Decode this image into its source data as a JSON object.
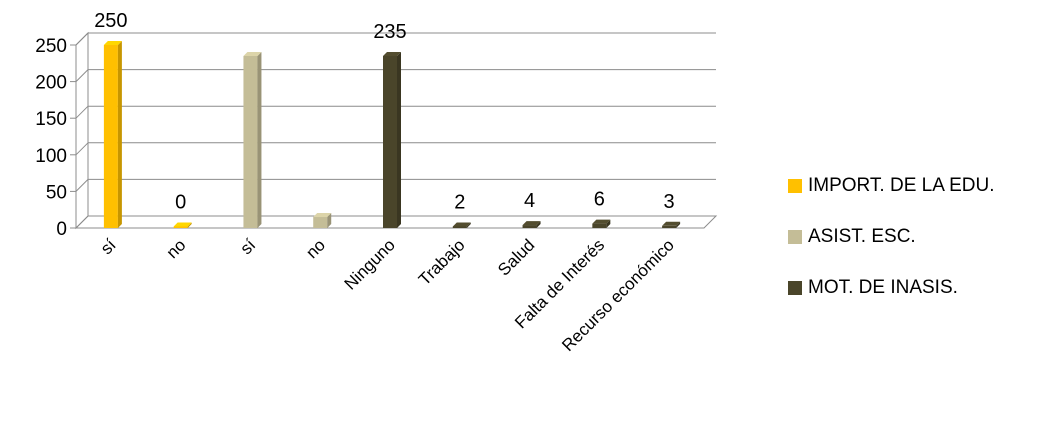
{
  "chart_data": {
    "type": "bar",
    "style": "3d-clustered-column",
    "categories": [
      "sí",
      "no",
      "sí",
      "no",
      "Ninguno",
      "Trabajo",
      "Salud",
      "Falta de Interés",
      "Recurso económico"
    ],
    "series": [
      {
        "name": "IMPORT. DE LA EDU.",
        "color": "#FFC000",
        "values": [
          250,
          0,
          null,
          null,
          null,
          null,
          null,
          null,
          null
        ]
      },
      {
        "name": "ASIST. ESC.",
        "color": "#C4BD97",
        "values": [
          null,
          null,
          235,
          15,
          null,
          null,
          null,
          null,
          null
        ]
      },
      {
        "name": "MOT. DE INASIS.",
        "color": "#4A452A",
        "values": [
          null,
          null,
          null,
          null,
          235,
          2,
          4,
          6,
          3
        ]
      }
    ],
    "data_labels": [
      "250",
      "0",
      "",
      "",
      "235",
      "2",
      "4",
      "6",
      "3"
    ],
    "yticks": [
      0,
      50,
      100,
      150,
      200,
      250
    ],
    "ylim": [
      0,
      250
    ],
    "grid": true,
    "legend_position": "right"
  }
}
